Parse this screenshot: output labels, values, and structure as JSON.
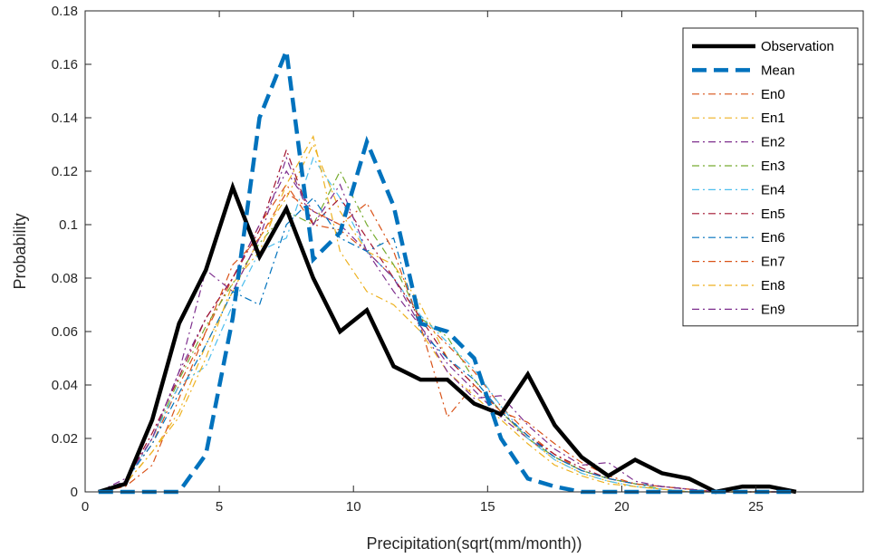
{
  "chart_data": {
    "type": "line",
    "xlabel": "Precipitation(sqrt(mm/month))",
    "ylabel": "Probability",
    "xlim": [
      0,
      29
    ],
    "ylim": [
      0,
      0.18
    ],
    "xticks": [
      0,
      5,
      10,
      15,
      20,
      25
    ],
    "yticks": [
      0,
      0.02,
      0.04,
      0.06,
      0.08,
      0.1,
      0.12,
      0.14,
      0.16,
      0.18
    ],
    "ytick_labels": [
      "0",
      "0.02",
      "0.04",
      "0.06",
      "0.08",
      "0.1",
      "0.12",
      "0.14",
      "0.16",
      "0.18"
    ],
    "grid": false,
    "legend_position": "top-right",
    "x": [
      0.5,
      1.5,
      2.5,
      3.5,
      4.5,
      5.5,
      6.5,
      7.5,
      8.5,
      9.5,
      10.5,
      11.5,
      12.5,
      13.5,
      14.5,
      15.5,
      16.5,
      17.5,
      18.5,
      19.5,
      20.5,
      21.5,
      22.5,
      23.5,
      24.5,
      25.5,
      26.5
    ],
    "series": [
      {
        "name": "Observation",
        "color": "#000000",
        "style": "solid",
        "width": 4.5,
        "values": [
          0.0,
          0.003,
          0.027,
          0.063,
          0.083,
          0.114,
          0.088,
          0.106,
          0.08,
          0.06,
          0.068,
          0.047,
          0.042,
          0.042,
          0.033,
          0.029,
          0.044,
          0.025,
          0.013,
          0.006,
          0.012,
          0.007,
          0.005,
          0.0,
          0.002,
          0.002,
          0.0
        ]
      },
      {
        "name": "Mean",
        "color": "#0072BD",
        "style": "dash",
        "width": 4.5,
        "values": [
          0.0,
          0.0,
          0.0,
          0.0,
          0.014,
          0.065,
          0.14,
          0.165,
          0.087,
          0.097,
          0.131,
          0.107,
          0.063,
          0.06,
          0.05,
          0.02,
          0.005,
          0.002,
          0.0,
          0.0,
          0.0,
          0.0,
          0.0,
          0.0,
          0.0,
          0.0,
          0.0
        ]
      },
      {
        "name": "En0",
        "color": "#D95319",
        "style": "dashdot",
        "width": 1.2,
        "values": [
          0.0,
          0.004,
          0.018,
          0.04,
          0.06,
          0.08,
          0.1,
          0.115,
          0.1,
          0.098,
          0.09,
          0.08,
          0.065,
          0.055,
          0.045,
          0.032,
          0.022,
          0.014,
          0.008,
          0.005,
          0.003,
          0.002,
          0.001,
          0.0,
          0.0,
          0.0,
          0.0
        ]
      },
      {
        "name": "En1",
        "color": "#EDB120",
        "style": "dashdot",
        "width": 1.2,
        "values": [
          0.0,
          0.003,
          0.015,
          0.03,
          0.055,
          0.075,
          0.095,
          0.11,
          0.13,
          0.105,
          0.09,
          0.085,
          0.07,
          0.05,
          0.04,
          0.03,
          0.02,
          0.012,
          0.007,
          0.004,
          0.002,
          0.001,
          0.0,
          0.0,
          0.0,
          0.0,
          0.0
        ]
      },
      {
        "name": "En2",
        "color": "#7E2F8E",
        "style": "dashdot",
        "width": 1.2,
        "values": [
          0.0,
          0.005,
          0.02,
          0.045,
          0.065,
          0.08,
          0.1,
          0.12,
          0.105,
          0.1,
          0.09,
          0.075,
          0.062,
          0.048,
          0.038,
          0.028,
          0.02,
          0.013,
          0.008,
          0.005,
          0.003,
          0.002,
          0.001,
          0.0,
          0.0,
          0.0,
          0.0
        ]
      },
      {
        "name": "En3",
        "color": "#77AC30",
        "style": "dashdot",
        "width": 1.2,
        "values": [
          0.0,
          0.004,
          0.02,
          0.042,
          0.062,
          0.078,
          0.093,
          0.105,
          0.1,
          0.12,
          0.1,
          0.085,
          0.065,
          0.058,
          0.042,
          0.03,
          0.02,
          0.013,
          0.008,
          0.005,
          0.003,
          0.001,
          0.0,
          0.0,
          0.0,
          0.0,
          0.0
        ]
      },
      {
        "name": "En4",
        "color": "#4DBEEE",
        "style": "dashdot",
        "width": 1.2,
        "values": [
          0.0,
          0.003,
          0.02,
          0.04,
          0.047,
          0.07,
          0.09,
          0.095,
          0.125,
          0.11,
          0.09,
          0.08,
          0.066,
          0.056,
          0.046,
          0.032,
          0.02,
          0.012,
          0.007,
          0.004,
          0.002,
          0.001,
          0.0,
          0.0,
          0.0,
          0.0,
          0.0
        ]
      },
      {
        "name": "En5",
        "color": "#A2142F",
        "style": "dashdot",
        "width": 1.2,
        "values": [
          0.0,
          0.004,
          0.022,
          0.043,
          0.065,
          0.08,
          0.098,
          0.128,
          0.1,
          0.11,
          0.095,
          0.08,
          0.065,
          0.05,
          0.04,
          0.03,
          0.021,
          0.014,
          0.009,
          0.005,
          0.003,
          0.002,
          0.001,
          0.0,
          0.0,
          0.0,
          0.0
        ]
      },
      {
        "name": "En6",
        "color": "#0072BD",
        "style": "dashdot",
        "width": 1.2,
        "values": [
          0.0,
          0.004,
          0.018,
          0.037,
          0.055,
          0.075,
          0.07,
          0.1,
          0.11,
          0.095,
          0.09,
          0.095,
          0.06,
          0.05,
          0.042,
          0.03,
          0.021,
          0.013,
          0.008,
          0.005,
          0.003,
          0.002,
          0.001,
          0.0,
          0.0,
          0.0,
          0.0
        ]
      },
      {
        "name": "En7",
        "color": "#D95319",
        "style": "dashdot",
        "width": 1.2,
        "values": [
          0.0,
          0.002,
          0.01,
          0.035,
          0.06,
          0.085,
          0.095,
          0.112,
          0.105,
          0.1,
          0.108,
          0.09,
          0.062,
          0.028,
          0.04,
          0.03,
          0.026,
          0.018,
          0.011,
          0.006,
          0.003,
          0.002,
          0.001,
          0.0,
          0.0,
          0.0,
          0.0
        ]
      },
      {
        "name": "En8",
        "color": "#EDB120",
        "style": "dashdot",
        "width": 1.2,
        "values": [
          0.0,
          0.003,
          0.015,
          0.028,
          0.05,
          0.078,
          0.09,
          0.115,
          0.133,
          0.09,
          0.075,
          0.07,
          0.06,
          0.045,
          0.036,
          0.027,
          0.018,
          0.01,
          0.006,
          0.003,
          0.002,
          0.001,
          0.0,
          0.0,
          0.0,
          0.0,
          0.0
        ]
      },
      {
        "name": "En9",
        "color": "#7E2F8E",
        "style": "dashdot",
        "width": 1.2,
        "values": [
          0.0,
          0.004,
          0.02,
          0.045,
          0.083,
          0.075,
          0.095,
          0.125,
          0.1,
          0.115,
          0.09,
          0.08,
          0.062,
          0.045,
          0.035,
          0.036,
          0.025,
          0.016,
          0.01,
          0.011,
          0.004,
          0.002,
          0.001,
          0.0,
          0.0,
          0.0,
          0.0
        ]
      }
    ]
  }
}
